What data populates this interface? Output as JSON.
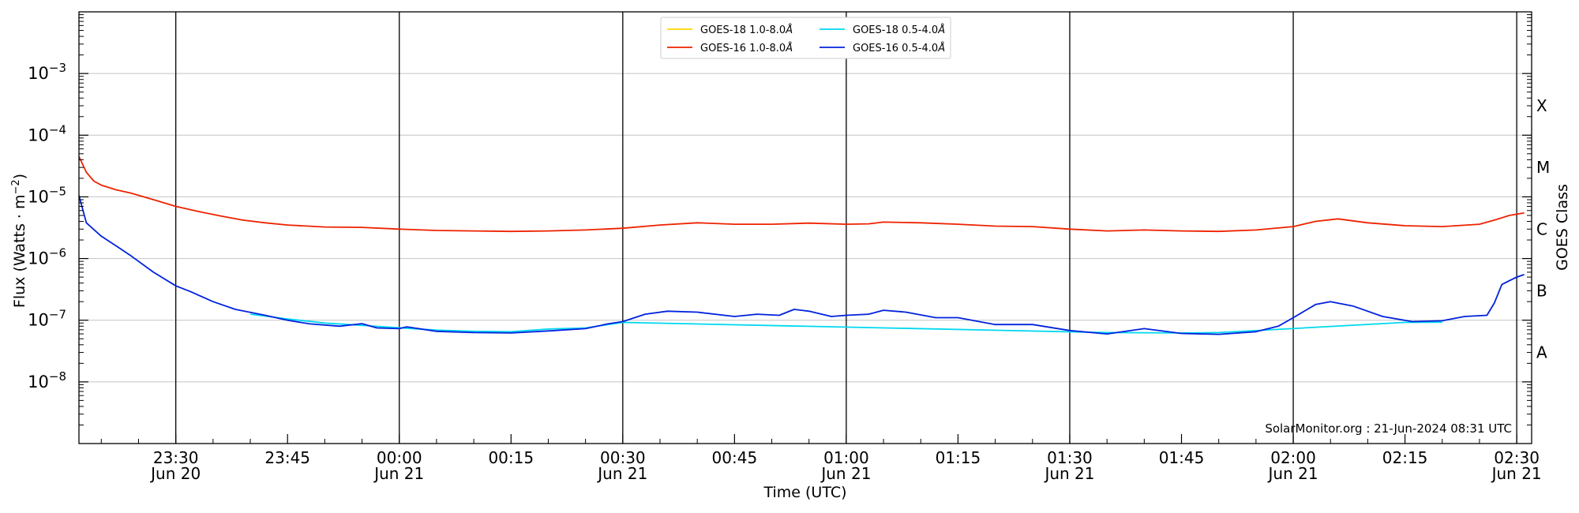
{
  "chart_data": {
    "type": "line",
    "ylabel_main": "Flux (Watts · m",
    "ylabel_sup": "−2",
    "ylabel_close": ")",
    "xlabel": "Time (UTC)",
    "right_label": "GOES Class",
    "yscale": "log",
    "ylim": [
      1e-09,
      0.01
    ],
    "xlim": [
      "2024-06-20 23:17",
      "2024-06-21 02:32"
    ],
    "grid": true,
    "legend_position": "top-center",
    "watermark": "SolarMonitor.org : 21-Jun-2024 08:31 UTC",
    "y_ticks": [
      {
        "value": 1e-08,
        "base": "10",
        "exp": "−8"
      },
      {
        "value": 1e-07,
        "base": "10",
        "exp": "−7"
      },
      {
        "value": 1e-06,
        "base": "10",
        "exp": "−6"
      },
      {
        "value": 1e-05,
        "base": "10",
        "exp": "−5"
      },
      {
        "value": 0.0001,
        "base": "10",
        "exp": "−4"
      },
      {
        "value": 0.001,
        "base": "10",
        "exp": "−3"
      }
    ],
    "x_ticks": [
      {
        "time": "2024-06-20 23:30",
        "label": "23:30",
        "date": "Jun 20"
      },
      {
        "time": "2024-06-20 23:45",
        "label": "23:45",
        "date": ""
      },
      {
        "time": "2024-06-21 00:00",
        "label": "00:00",
        "date": "Jun 21"
      },
      {
        "time": "2024-06-21 00:15",
        "label": "00:15",
        "date": ""
      },
      {
        "time": "2024-06-21 00:30",
        "label": "00:30",
        "date": "Jun 21"
      },
      {
        "time": "2024-06-21 00:45",
        "label": "00:45",
        "date": ""
      },
      {
        "time": "2024-06-21 01:00",
        "label": "01:00",
        "date": "Jun 21"
      },
      {
        "time": "2024-06-21 01:15",
        "label": "01:15",
        "date": ""
      },
      {
        "time": "2024-06-21 01:30",
        "label": "01:30",
        "date": "Jun 21"
      },
      {
        "time": "2024-06-21 01:45",
        "label": "01:45",
        "date": ""
      },
      {
        "time": "2024-06-21 02:00",
        "label": "02:00",
        "date": "Jun 21"
      },
      {
        "time": "2024-06-21 02:15",
        "label": "02:15",
        "date": ""
      },
      {
        "time": "2024-06-21 02:30",
        "label": "02:30",
        "date": "Jun 21"
      }
    ],
    "vertical_lines": [
      "2024-06-20 23:30",
      "2024-06-21 00:00",
      "2024-06-21 00:30",
      "2024-06-21 01:00",
      "2024-06-21 01:30",
      "2024-06-21 02:00",
      "2024-06-21 02:30"
    ],
    "goes_classes": [
      {
        "label": "X",
        "value": 0.0003
      },
      {
        "label": "M",
        "value": 3e-05
      },
      {
        "label": "C",
        "value": 3e-06
      },
      {
        "label": "B",
        "value": 3e-07
      },
      {
        "label": "A",
        "value": 3e-08
      }
    ],
    "series": [
      {
        "name": "GOES-18 1.0-8.0",
        "color": "#ffd700",
        "points": []
      },
      {
        "name": "GOES-16 1.0-8.0",
        "color": "#ee2200",
        "points": [
          [
            "2024-06-20 23:17",
            4.5e-05
          ],
          [
            "2024-06-20 23:18",
            2.5e-05
          ],
          [
            "2024-06-20 23:19",
            1.8e-05
          ],
          [
            "2024-06-20 23:20",
            1.55e-05
          ],
          [
            "2024-06-20 23:22",
            1.3e-05
          ],
          [
            "2024-06-20 23:24",
            1.15e-05
          ],
          [
            "2024-06-20 23:27",
            9e-06
          ],
          [
            "2024-06-20 23:30",
            7e-06
          ],
          [
            "2024-06-20 23:33",
            5.8e-06
          ],
          [
            "2024-06-20 23:36",
            4.9e-06
          ],
          [
            "2024-06-20 23:39",
            4.2e-06
          ],
          [
            "2024-06-20 23:42",
            3.8e-06
          ],
          [
            "2024-06-20 23:45",
            3.5e-06
          ],
          [
            "2024-06-20 23:50",
            3.25e-06
          ],
          [
            "2024-06-20 23:55",
            3.2e-06
          ],
          [
            "2024-06-21 00:00",
            3e-06
          ],
          [
            "2024-06-21 00:05",
            2.85e-06
          ],
          [
            "2024-06-21 00:10",
            2.8e-06
          ],
          [
            "2024-06-21 00:15",
            2.75e-06
          ],
          [
            "2024-06-21 00:20",
            2.8e-06
          ],
          [
            "2024-06-21 00:25",
            2.9e-06
          ],
          [
            "2024-06-21 00:30",
            3.1e-06
          ],
          [
            "2024-06-21 00:35",
            3.5e-06
          ],
          [
            "2024-06-21 00:40",
            3.8e-06
          ],
          [
            "2024-06-21 00:45",
            3.6e-06
          ],
          [
            "2024-06-21 00:50",
            3.6e-06
          ],
          [
            "2024-06-21 00:55",
            3.75e-06
          ],
          [
            "2024-06-21 01:00",
            3.6e-06
          ],
          [
            "2024-06-21 01:03",
            3.65e-06
          ],
          [
            "2024-06-21 01:05",
            3.9e-06
          ],
          [
            "2024-06-21 01:10",
            3.8e-06
          ],
          [
            "2024-06-21 01:15",
            3.6e-06
          ],
          [
            "2024-06-21 01:20",
            3.35e-06
          ],
          [
            "2024-06-21 01:25",
            3.3e-06
          ],
          [
            "2024-06-21 01:30",
            3e-06
          ],
          [
            "2024-06-21 01:35",
            2.8e-06
          ],
          [
            "2024-06-21 01:40",
            2.9e-06
          ],
          [
            "2024-06-21 01:45",
            2.8e-06
          ],
          [
            "2024-06-21 01:50",
            2.75e-06
          ],
          [
            "2024-06-21 01:55",
            2.9e-06
          ],
          [
            "2024-06-21 02:00",
            3.3e-06
          ],
          [
            "2024-06-21 02:03",
            4e-06
          ],
          [
            "2024-06-21 02:06",
            4.4e-06
          ],
          [
            "2024-06-21 02:10",
            3.8e-06
          ],
          [
            "2024-06-21 02:15",
            3.4e-06
          ],
          [
            "2024-06-21 02:20",
            3.3e-06
          ],
          [
            "2024-06-21 02:25",
            3.6e-06
          ],
          [
            "2024-06-21 02:27",
            4.2e-06
          ],
          [
            "2024-06-21 02:29",
            5e-06
          ],
          [
            "2024-06-21 02:31",
            5.5e-06
          ]
        ]
      },
      {
        "name": "GOES-18 0.5-4.0",
        "color": "#00d8f0",
        "points": [
          [
            "2024-06-20 23:40",
            1.25e-07
          ],
          [
            "2024-06-20 23:45",
            1.05e-07
          ],
          [
            "2024-06-20 23:50",
            9e-08
          ],
          [
            "2024-06-21 00:05",
            6.9e-08
          ],
          [
            "2024-06-21 00:10",
            6.6e-08
          ],
          [
            "2024-06-21 00:15",
            6.5e-08
          ],
          [
            "2024-06-21 00:20",
            7.2e-08
          ],
          [
            "2024-06-21 00:25",
            7.5e-08
          ],
          [
            "2024-06-21 00:30",
            9.2e-08
          ],
          [
            "2024-06-21 01:35",
            6.3e-08
          ],
          [
            "2024-06-21 01:45",
            6.2e-08
          ],
          [
            "2024-06-21 01:50",
            6.3e-08
          ],
          [
            "2024-06-21 02:15",
            9.2e-08
          ],
          [
            "2024-06-21 02:20",
            9.3e-08
          ]
        ]
      },
      {
        "name": "GOES-16 0.5-4.0",
        "color": "#0022dd",
        "points": [
          [
            "2024-06-20 23:17",
            1.05e-05
          ],
          [
            "2024-06-20 23:18",
            3.8e-06
          ],
          [
            "2024-06-20 23:20",
            2.3e-06
          ],
          [
            "2024-06-20 23:22",
            1.6e-06
          ],
          [
            "2024-06-20 23:24",
            1.1e-06
          ],
          [
            "2024-06-20 23:27",
            6e-07
          ],
          [
            "2024-06-20 23:30",
            3.6e-07
          ],
          [
            "2024-06-20 23:32",
            2.9e-07
          ],
          [
            "2024-06-20 23:35",
            2e-07
          ],
          [
            "2024-06-20 23:38",
            1.5e-07
          ],
          [
            "2024-06-20 23:42",
            1.2e-07
          ],
          [
            "2024-06-20 23:45",
            1e-07
          ],
          [
            "2024-06-20 23:48",
            8.7e-08
          ],
          [
            "2024-06-20 23:52",
            8e-08
          ],
          [
            "2024-06-20 23:55",
            8.8e-08
          ],
          [
            "2024-06-20 23:57",
            7.5e-08
          ],
          [
            "2024-06-21 00:00",
            7.3e-08
          ],
          [
            "2024-06-21 00:01",
            7.8e-08
          ],
          [
            "2024-06-21 00:05",
            6.6e-08
          ],
          [
            "2024-06-21 00:10",
            6.3e-08
          ],
          [
            "2024-06-21 00:15",
            6.2e-08
          ],
          [
            "2024-06-21 00:20",
            6.7e-08
          ],
          [
            "2024-06-21 00:25",
            7.3e-08
          ],
          [
            "2024-06-21 00:28",
            8.7e-08
          ],
          [
            "2024-06-21 00:30",
            9.5e-08
          ],
          [
            "2024-06-21 00:33",
            1.25e-07
          ],
          [
            "2024-06-21 00:36",
            1.4e-07
          ],
          [
            "2024-06-21 00:40",
            1.35e-07
          ],
          [
            "2024-06-21 00:45",
            1.15e-07
          ],
          [
            "2024-06-21 00:48",
            1.25e-07
          ],
          [
            "2024-06-21 00:51",
            1.2e-07
          ],
          [
            "2024-06-21 00:53",
            1.5e-07
          ],
          [
            "2024-06-21 00:55",
            1.4e-07
          ],
          [
            "2024-06-21 00:58",
            1.15e-07
          ],
          [
            "2024-06-21 01:00",
            1.2e-07
          ],
          [
            "2024-06-21 01:03",
            1.25e-07
          ],
          [
            "2024-06-21 01:05",
            1.45e-07
          ],
          [
            "2024-06-21 01:08",
            1.35e-07
          ],
          [
            "2024-06-21 01:12",
            1.1e-07
          ],
          [
            "2024-06-21 01:15",
            1.1e-07
          ],
          [
            "2024-06-21 01:20",
            8.5e-08
          ],
          [
            "2024-06-21 01:25",
            8.5e-08
          ],
          [
            "2024-06-21 01:30",
            6.8e-08
          ],
          [
            "2024-06-21 01:35",
            6e-08
          ],
          [
            "2024-06-21 01:40",
            7.3e-08
          ],
          [
            "2024-06-21 01:45",
            6.1e-08
          ],
          [
            "2024-06-21 01:50",
            5.9e-08
          ],
          [
            "2024-06-21 01:55",
            6.5e-08
          ],
          [
            "2024-06-21 01:58",
            8e-08
          ],
          [
            "2024-06-21 02:00",
            1.1e-07
          ],
          [
            "2024-06-21 02:03",
            1.8e-07
          ],
          [
            "2024-06-21 02:05",
            2e-07
          ],
          [
            "2024-06-21 02:08",
            1.7e-07
          ],
          [
            "2024-06-21 02:12",
            1.15e-07
          ],
          [
            "2024-06-21 02:16",
            9.5e-08
          ],
          [
            "2024-06-21 02:20",
            9.8e-08
          ],
          [
            "2024-06-21 02:23",
            1.15e-07
          ],
          [
            "2024-06-21 02:26",
            1.2e-07
          ],
          [
            "2024-06-21 02:27",
            1.9e-07
          ],
          [
            "2024-06-21 02:28",
            3.8e-07
          ],
          [
            "2024-06-21 02:30",
            5e-07
          ],
          [
            "2024-06-21 02:31",
            5.5e-07
          ]
        ]
      }
    ],
    "legend": [
      {
        "text": "GOES-18 1.0-8.0",
        "unit": "Å",
        "color": "#ffd700"
      },
      {
        "text": "GOES-18 0.5-4.0",
        "unit": "Å",
        "color": "#00d8f0"
      },
      {
        "text": "GOES-16 1.0-8.0",
        "unit": "Å",
        "color": "#ee2200"
      },
      {
        "text": "GOES-16 0.5-4.0",
        "unit": "Å",
        "color": "#0022dd"
      }
    ]
  }
}
